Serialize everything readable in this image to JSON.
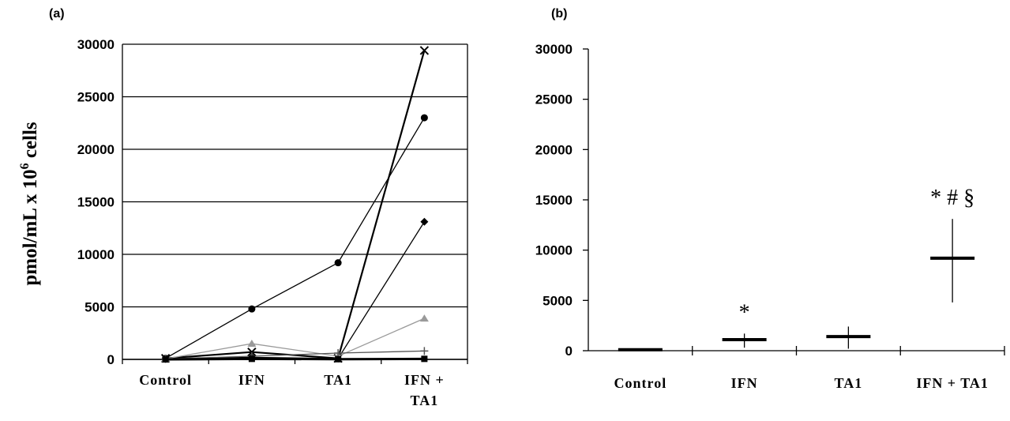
{
  "chart_data": [
    {
      "panel": "(a)",
      "type": "line",
      "ylabel_main": "pmol/mL x 10",
      "ylabel_sup": "6",
      "ylabel_tail": " cells",
      "categories": [
        "Control",
        "IFN",
        "TA1",
        "IFN + TA1"
      ],
      "category_lines": [
        [
          "Control"
        ],
        [
          "IFN"
        ],
        [
          "TA1"
        ],
        [
          "IFN +",
          "TA1"
        ]
      ],
      "ylim": [
        0,
        30000
      ],
      "yticks": [
        0,
        5000,
        10000,
        15000,
        20000,
        25000,
        30000
      ],
      "grid": true,
      "series": [
        {
          "marker": "x",
          "color": "#000000",
          "width": 2.2,
          "values": [
            100,
            700,
            100,
            29400
          ]
        },
        {
          "marker": "circle",
          "color": "#000000",
          "width": 1.3,
          "values": [
            100,
            4800,
            9200,
            23000
          ]
        },
        {
          "marker": "diamond",
          "color": "#000000",
          "width": 1.3,
          "values": [
            50,
            200,
            80,
            13100
          ]
        },
        {
          "marker": "triangle",
          "color": "#9a9a9a",
          "width": 1.3,
          "values": [
            50,
            1500,
            300,
            3900
          ]
        },
        {
          "marker": "plus",
          "color": "#555555",
          "width": 1.3,
          "values": [
            50,
            300,
            600,
            800
          ]
        },
        {
          "marker": "square",
          "color": "#000000",
          "width": 3.0,
          "values": [
            0,
            50,
            20,
            50
          ]
        }
      ]
    },
    {
      "panel": "(b)",
      "type": "box",
      "categories": [
        "Control",
        "IFN",
        "TA1",
        "IFN + TA1"
      ],
      "ylim": [
        0,
        30000
      ],
      "yticks": [
        0,
        5000,
        10000,
        15000,
        20000,
        25000,
        30000
      ],
      "grid": false,
      "medians": [
        100,
        1100,
        1400,
        9200
      ],
      "ranges": [
        [
          0,
          200
        ],
        [
          300,
          1700
        ],
        [
          200,
          2400
        ],
        [
          4800,
          13100
        ]
      ],
      "annotations": [
        "",
        "*",
        "",
        "* # §"
      ]
    }
  ]
}
